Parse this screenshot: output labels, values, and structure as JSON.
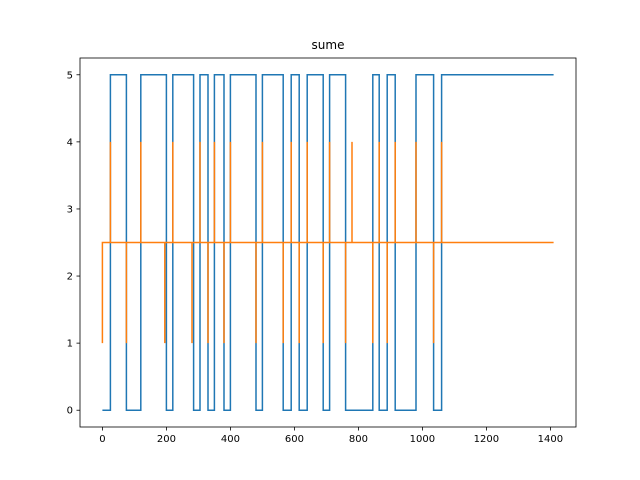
{
  "chart_data": {
    "type": "line",
    "title": "sume",
    "xlabel": "",
    "ylabel": "",
    "xlim": [
      -70,
      1480
    ],
    "ylim": [
      -0.25,
      5.25
    ],
    "xticks": [
      0,
      200,
      400,
      600,
      800,
      1000,
      1200,
      1400
    ],
    "yticks": [
      0,
      1,
      2,
      3,
      4,
      5
    ],
    "grid": false,
    "legend": "none",
    "series": [
      {
        "color": "#1f77b4",
        "step": true,
        "x": [
          0,
          20,
          25,
          70,
          75,
          115,
          120,
          195,
          200,
          215,
          220,
          280,
          285,
          300,
          305,
          325,
          330,
          345,
          350,
          375,
          380,
          395,
          400,
          475,
          480,
          495,
          500,
          560,
          565,
          585,
          590,
          610,
          615,
          635,
          640,
          685,
          690,
          705,
          710,
          755,
          760,
          840,
          845,
          860,
          865,
          885,
          890,
          910,
          915,
          975,
          980,
          1030,
          1035,
          1055,
          1060,
          1410
        ],
        "y": [
          0,
          0,
          5,
          5,
          0,
          0,
          5,
          5,
          0,
          0,
          5,
          5,
          0,
          0,
          5,
          5,
          0,
          0,
          5,
          5,
          0,
          0,
          5,
          5,
          0,
          0,
          5,
          5,
          0,
          0,
          5,
          5,
          0,
          0,
          5,
          5,
          0,
          0,
          5,
          5,
          0,
          0,
          5,
          5,
          0,
          0,
          5,
          5,
          0,
          0,
          5,
          5,
          0,
          0,
          5,
          5
        ]
      },
      {
        "color": "#ff7f0e",
        "step": true,
        "x": [
          0,
          0,
          25,
          25,
          25,
          75,
          75,
          75,
          120,
          120,
          120,
          195,
          195,
          195,
          220,
          220,
          220,
          280,
          280,
          280,
          305,
          305,
          305,
          330,
          330,
          330,
          350,
          350,
          350,
          380,
          380,
          380,
          400,
          400,
          400,
          480,
          480,
          480,
          500,
          500,
          500,
          565,
          565,
          565,
          590,
          590,
          590,
          615,
          615,
          615,
          640,
          640,
          640,
          690,
          690,
          690,
          710,
          710,
          710,
          760,
          760,
          760,
          780,
          780,
          780,
          845,
          845,
          845,
          865,
          865,
          865,
          890,
          890,
          890,
          915,
          915,
          915,
          980,
          980,
          980,
          1035,
          1035,
          1035,
          1060,
          1060,
          1060,
          1410
        ],
        "y": [
          1,
          2.5,
          2.5,
          4,
          2.5,
          2.5,
          1,
          2.5,
          2.5,
          4,
          2.5,
          2.5,
          1,
          2.5,
          2.5,
          4,
          2.5,
          2.5,
          1,
          2.5,
          2.5,
          4,
          2.5,
          2.5,
          1,
          2.5,
          2.5,
          4,
          2.5,
          2.5,
          1,
          2.5,
          2.5,
          4,
          2.5,
          2.5,
          1,
          2.5,
          2.5,
          4,
          2.5,
          2.5,
          1,
          2.5,
          2.5,
          4,
          2.5,
          2.5,
          1,
          2.5,
          2.5,
          4,
          2.5,
          2.5,
          1,
          2.5,
          2.5,
          4,
          2.5,
          2.5,
          1,
          2.5,
          2.5,
          4,
          2.5,
          2.5,
          1,
          2.5,
          2.5,
          4,
          2.5,
          2.5,
          1,
          2.5,
          2.5,
          4,
          2.5,
          2.5,
          4,
          2.5,
          2.5,
          1,
          2.5,
          2.5,
          4,
          2.5,
          2.5
        ]
      }
    ]
  }
}
